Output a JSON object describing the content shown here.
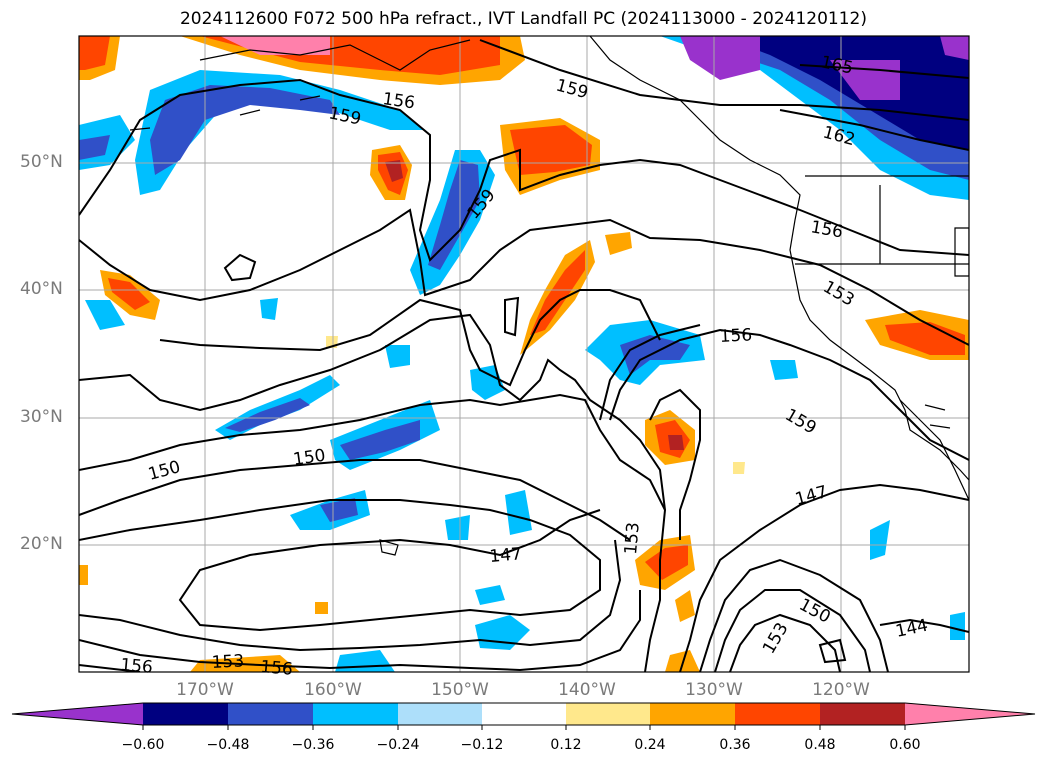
{
  "title": "2024112600 F072 500 hPa refract., IVT Landfall PC (2024113000 - 2024120112)",
  "map": {
    "lat_labels": [
      "50°N",
      "40°N",
      "30°N",
      "20°N"
    ],
    "lon_labels": [
      "170°W",
      "160°W",
      "150°W",
      "140°W",
      "130°W",
      "120°W"
    ],
    "contour_labels": [
      "165",
      "162",
      "159",
      "159",
      "159",
      "156",
      "156",
      "156",
      "156",
      "153",
      "153",
      "153",
      "153",
      "150",
      "150",
      "150",
      "147",
      "147",
      "144",
      "156",
      "159"
    ]
  },
  "colorbar": {
    "colors": [
      "#9932CC",
      "#000080",
      "#3050C8",
      "#00BFFF",
      "#ADDFFA",
      "#FFFFFF",
      "#FFE88C",
      "#FFA500",
      "#FF4500",
      "#B22222",
      "#FF80AB"
    ],
    "tick_labels": [
      "−0.60",
      "−0.48",
      "−0.36",
      "−0.24",
      "−0.12",
      "0.12",
      "0.24",
      "0.36",
      "0.48",
      "0.60"
    ]
  }
}
